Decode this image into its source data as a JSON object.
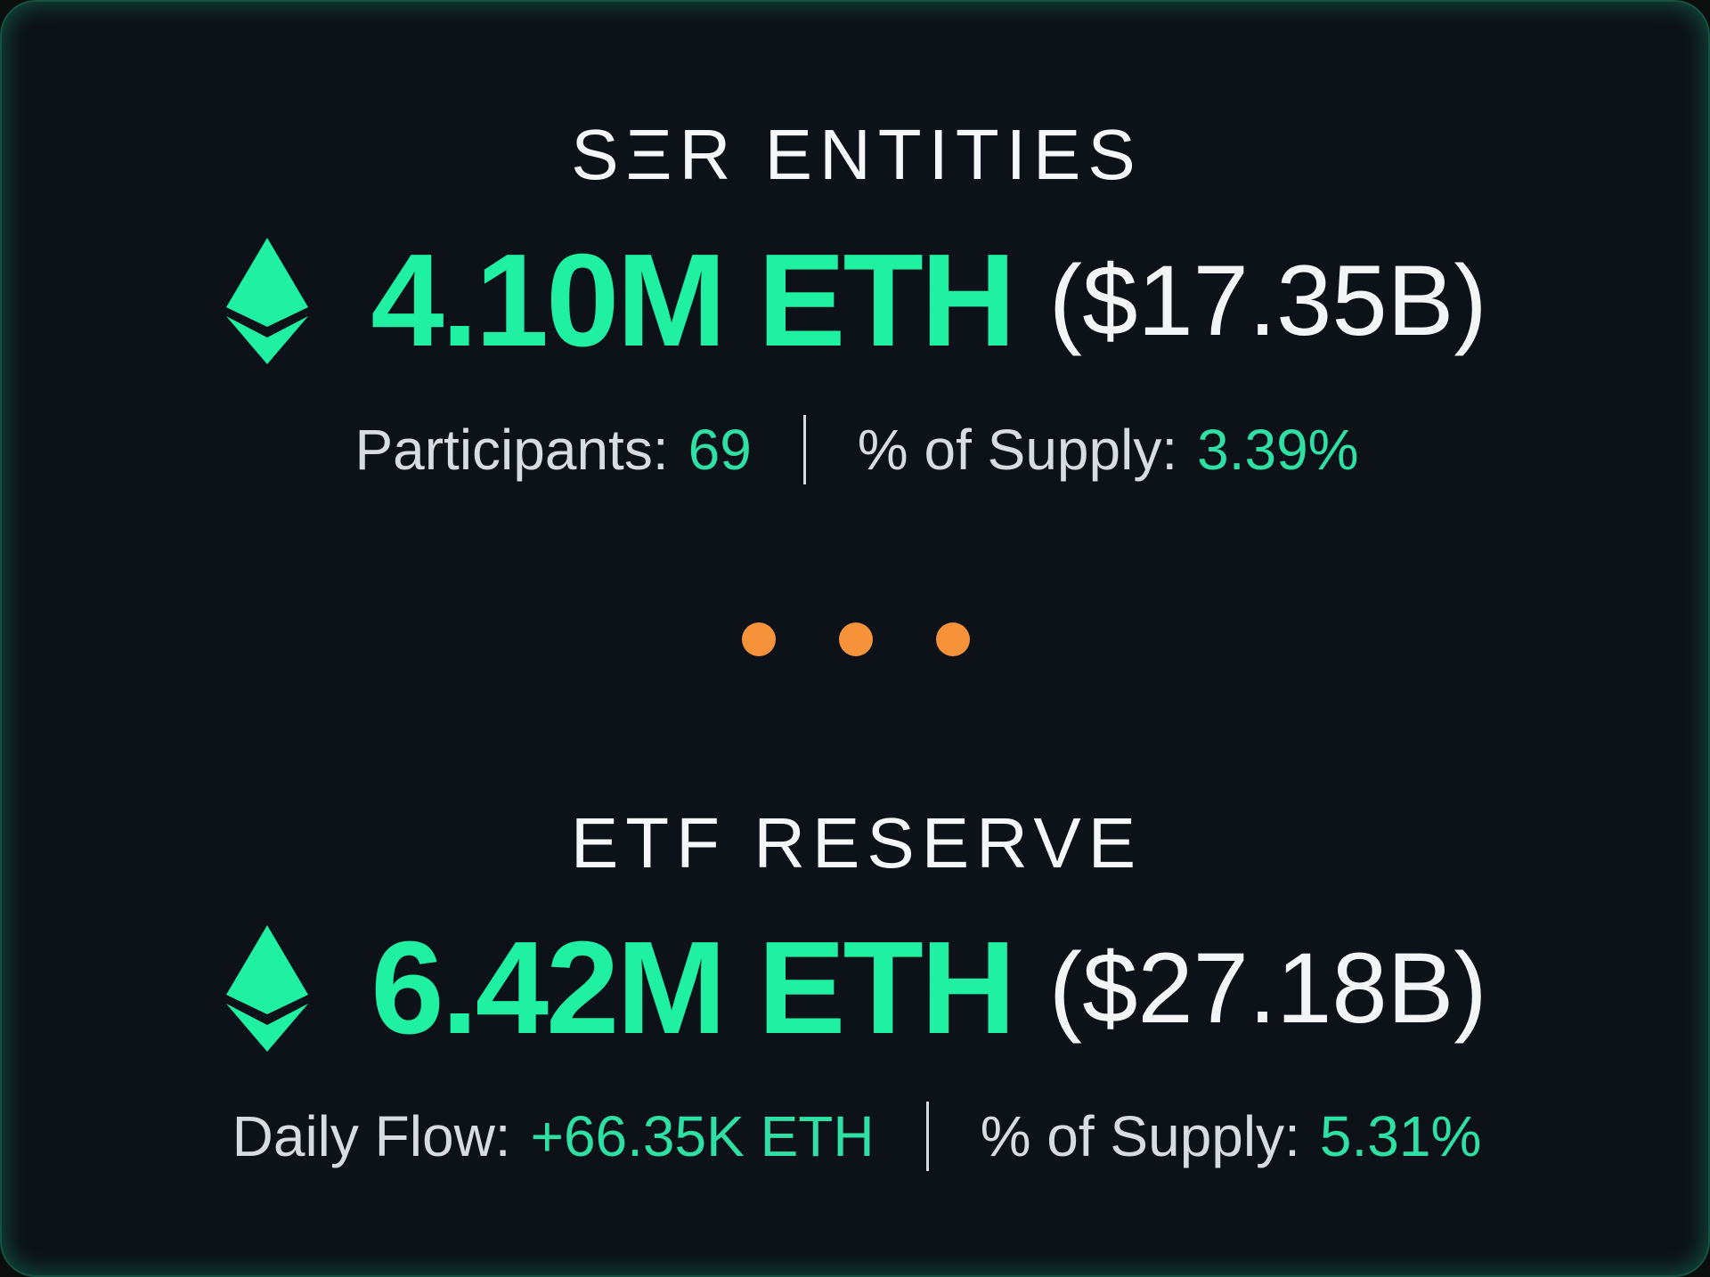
{
  "colors": {
    "accent": "#1ff0a2",
    "dots": "#f5923a",
    "background": "#0d1218"
  },
  "sections": [
    {
      "title": "SΞR ENTITIES",
      "icon": "ethereum-icon",
      "amount": "4.10M ETH",
      "usd": "($17.35B)",
      "stat1_label": "Participants:",
      "stat1_value": "69",
      "stat2_label": "% of Supply:",
      "stat2_value": "3.39%"
    },
    {
      "title": "ETF RESERVE",
      "icon": "ethereum-icon",
      "amount": "6.42M ETH",
      "usd": "($27.18B)",
      "stat1_label": "Daily Flow:",
      "stat1_value": "+66.35K ETH",
      "stat2_label": "% of Supply:",
      "stat2_value": "5.31%"
    }
  ]
}
